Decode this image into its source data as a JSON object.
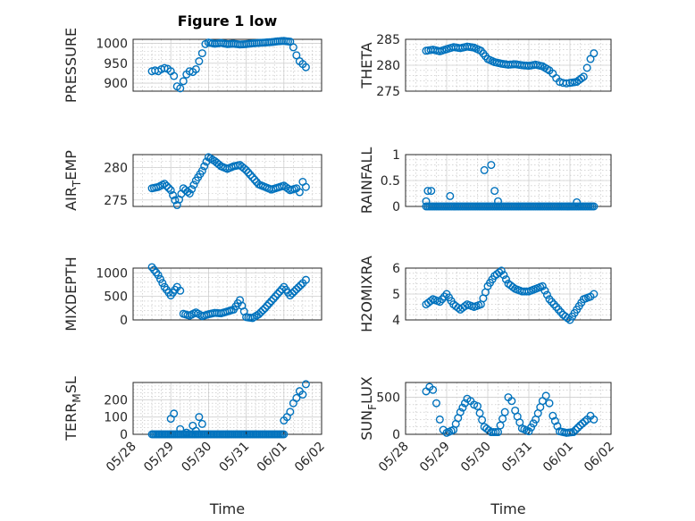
{
  "chart_data": [
    {
      "type": "scatter",
      "title": "Figure 1 low",
      "ylabel": "PRESSURE",
      "xlabel": "",
      "ylim": [
        880,
        1010
      ],
      "yticks": [
        "900",
        "950",
        "1000"
      ],
      "ytick_values": [
        900,
        950,
        1000
      ],
      "xticks": [],
      "marker_color": "#0072BD",
      "grid": "on",
      "x": [
        "05/28 12:00",
        "05/28 14:00",
        "05/28 16:00",
        "05/28 18:00",
        "05/28 20:00",
        "05/28 22:00",
        "05/29 00:00",
        "05/29 02:00",
        "05/29 04:00",
        "05/29 06:00",
        "05/29 08:00",
        "05/29 10:00",
        "05/29 12:00",
        "05/29 14:00",
        "05/29 16:00",
        "05/29 18:00",
        "05/29 20:00",
        "05/29 22:00",
        "05/30 00:00",
        "05/30 04:00",
        "05/30 08:00",
        "05/30 12:00",
        "05/30 16:00",
        "05/30 20:00",
        "05/31 00:00",
        "05/31 04:00",
        "05/31 08:00",
        "05/31 12:00",
        "05/31 16:00",
        "05/31 20:00",
        "06/01 00:00",
        "06/01 04:00",
        "06/01 06:00",
        "06/01 08:00",
        "06/01 10:00",
        "06/01 12:00",
        "06/01 14:00"
      ],
      "y": [
        930,
        932,
        930,
        935,
        938,
        936,
        930,
        918,
        892,
        887,
        905,
        922,
        930,
        928,
        935,
        955,
        975,
        998,
        1002,
        999,
        1001,
        998,
        999,
        997,
        998,
        1000,
        1001,
        1002,
        1003,
        1005,
        1006,
        1004,
        990,
        970,
        955,
        948,
        940
      ]
    },
    {
      "type": "scatter",
      "title": "",
      "ylabel": "THETA",
      "xlabel": "",
      "ylim": [
        275,
        285
      ],
      "yticks": [
        "275",
        "280",
        "285"
      ],
      "ytick_values": [
        275,
        280,
        285
      ],
      "xticks": [],
      "marker_color": "#0072BD",
      "grid": "on",
      "x": [
        "05/28 12:00",
        "05/28 16:00",
        "05/28 20:00",
        "05/29 00:00",
        "05/29 04:00",
        "05/29 08:00",
        "05/29 12:00",
        "05/29 16:00",
        "05/29 20:00",
        "05/30 00:00",
        "05/30 04:00",
        "05/30 08:00",
        "05/30 12:00",
        "05/30 16:00",
        "05/30 20:00",
        "05/31 00:00",
        "05/31 04:00",
        "05/31 08:00",
        "05/31 12:00",
        "05/31 14:00",
        "05/31 16:00",
        "05/31 18:00",
        "05/31 20:00",
        "05/31 22:00",
        "06/01 00:00",
        "06/01 04:00",
        "06/01 08:00",
        "06/01 10:00",
        "06/01 12:00",
        "06/01 14:00"
      ],
      "y": [
        282.8,
        283.0,
        282.7,
        283.1,
        283.5,
        283.3,
        283.6,
        283.4,
        282.8,
        281.2,
        280.6,
        280.3,
        280.1,
        280.2,
        280.0,
        279.9,
        280.1,
        279.8,
        279.0,
        278.4,
        277.5,
        276.8,
        276.6,
        276.5,
        276.6,
        276.8,
        277.8,
        279.5,
        281.2,
        282.3
      ]
    },
    {
      "type": "scatter",
      "title": "",
      "ylabel": "AIR_TEMP",
      "xlabel": "",
      "ylim": [
        274,
        282
      ],
      "yticks": [
        "275",
        "280"
      ],
      "ytick_values": [
        275,
        280
      ],
      "xticks": [],
      "marker_color": "#0072BD",
      "grid": "on",
      "x": [
        "05/28 12:00",
        "05/28 16:00",
        "05/28 20:00",
        "05/29 00:00",
        "05/29 04:00",
        "05/29 08:00",
        "05/29 12:00",
        "05/29 16:00",
        "05/29 20:00",
        "05/30 00:00",
        "05/30 04:00",
        "05/30 08:00",
        "05/30 12:00",
        "05/30 16:00",
        "05/30 20:00",
        "05/31 00:00",
        "05/31 04:00",
        "05/31 08:00",
        "05/31 12:00",
        "05/31 16:00",
        "05/31 20:00",
        "06/01 00:00",
        "06/01 04:00",
        "06/01 08:00",
        "06/01 10:00",
        "06/01 12:00",
        "06/01 14:00"
      ],
      "y": [
        276.8,
        277.0,
        277.5,
        276.5,
        274.2,
        276.8,
        276.0,
        278.0,
        279.5,
        281.6,
        281.0,
        280.2,
        279.8,
        280.2,
        280.4,
        279.6,
        278.5,
        277.4,
        277.0,
        276.6,
        276.9,
        277.2,
        276.5,
        276.8,
        276.2,
        277.8,
        277.0
      ]
    },
    {
      "type": "scatter",
      "title": "",
      "ylabel": "RAINFALL",
      "xlabel": "",
      "ylim": [
        0,
        1
      ],
      "yticks": [
        "0",
        "0.5",
        "1"
      ],
      "ytick_values": [
        0,
        0.5,
        1
      ],
      "xticks": [],
      "marker_color": "#0072BD",
      "grid": "on",
      "x": [
        "05/28 12:00",
        "05/28 13:00",
        "05/28 15:00",
        "05/29 02:00",
        "05/29 22:00",
        "05/30 02:00",
        "05/30 04:00",
        "05/30 06:00",
        "06/01 04:00"
      ],
      "y": [
        0.1,
        0.3,
        0.3,
        0.2,
        0.7,
        0.8,
        0.3,
        0.1,
        0.08
      ],
      "baseline": {
        "value": 0,
        "from": "05/28 12:00",
        "to": "06/01 14:00"
      }
    },
    {
      "type": "scatter",
      "title": "",
      "ylabel": "MIXDEPTH",
      "xlabel": "",
      "ylim": [
        0,
        1100
      ],
      "yticks": [
        "0",
        "500",
        "1000"
      ],
      "ytick_values": [
        0,
        500,
        1000
      ],
      "xticks": [],
      "marker_color": "#0072BD",
      "grid": "on",
      "x": [
        "05/28 12:00",
        "05/28 16:00",
        "05/28 20:00",
        "05/29 00:00",
        "05/29 04:00",
        "05/29 06:00",
        "05/29 08:00",
        "05/29 12:00",
        "05/29 16:00",
        "05/29 20:00",
        "05/30 00:00",
        "05/30 04:00",
        "05/30 08:00",
        "05/30 12:00",
        "05/30 16:00",
        "05/30 20:00",
        "05/31 00:00",
        "05/31 04:00",
        "05/31 08:00",
        "05/31 12:00",
        "05/31 16:00",
        "05/31 20:00",
        "06/01 00:00",
        "06/01 04:00",
        "06/01 08:00",
        "06/01 12:00",
        "06/01 14:00"
      ],
      "y": [
        1120,
        950,
        700,
        520,
        700,
        620,
        130,
        90,
        160,
        80,
        120,
        150,
        140,
        180,
        220,
        420,
        60,
        40,
        120,
        250,
        400,
        550,
        700,
        520,
        650,
        780,
        850
      ]
    },
    {
      "type": "scatter",
      "title": "",
      "ylabel": "H2OMIXRA",
      "xlabel": "",
      "ylim": [
        4,
        6
      ],
      "yticks": [
        "4",
        "5",
        "6"
      ],
      "ytick_values": [
        4,
        5,
        6
      ],
      "xticks": [],
      "marker_color": "#0072BD",
      "grid": "on",
      "x": [
        "05/28 12:00",
        "05/28 16:00",
        "05/28 20:00",
        "05/29 00:00",
        "05/29 04:00",
        "05/29 08:00",
        "05/29 12:00",
        "05/29 16:00",
        "05/29 20:00",
        "05/30 00:00",
        "05/30 04:00",
        "05/30 08:00",
        "05/30 12:00",
        "05/30 16:00",
        "05/30 20:00",
        "05/31 00:00",
        "05/31 04:00",
        "05/31 08:00",
        "05/31 12:00",
        "05/31 16:00",
        "05/31 20:00",
        "06/01 00:00",
        "06/01 04:00",
        "06/01 08:00",
        "06/01 12:00",
        "06/01 14:00"
      ],
      "y": [
        4.6,
        4.8,
        4.7,
        5.0,
        4.6,
        4.4,
        4.6,
        4.5,
        4.6,
        5.3,
        5.7,
        5.9,
        5.4,
        5.2,
        5.1,
        5.1,
        5.2,
        5.3,
        4.8,
        4.5,
        4.2,
        4.0,
        4.4,
        4.8,
        4.9,
        5.0
      ]
    },
    {
      "type": "scatter",
      "title": "",
      "ylabel": "TERR_MSL",
      "xlabel": "Time",
      "ylim": [
        0,
        300
      ],
      "yticks": [
        "0",
        "100",
        "200"
      ],
      "ytick_values": [
        0,
        100,
        200
      ],
      "xticks": [
        "05/28",
        "05/29",
        "05/30",
        "05/31",
        "06/01",
        "06/02"
      ],
      "xlim": [
        "05/28",
        "06/02"
      ],
      "marker_color": "#0072BD",
      "grid": "on",
      "x": [
        "05/29 00:00",
        "05/29 02:00",
        "05/29 06:00",
        "05/29 10:00",
        "05/29 14:00",
        "05/29 16:00",
        "05/29 18:00",
        "05/29 20:00",
        "06/01 00:00",
        "06/01 02:00",
        "06/01 04:00",
        "06/01 06:00",
        "06/01 08:00",
        "06/01 10:00",
        "06/01 12:00",
        "06/01 14:00"
      ],
      "y": [
        90,
        120,
        30,
        10,
        50,
        20,
        100,
        60,
        80,
        100,
        130,
        180,
        210,
        250,
        230,
        290
      ],
      "baseline": {
        "value": 0,
        "from": "05/28 12:00",
        "to": "06/01 00:00"
      }
    },
    {
      "type": "scatter",
      "title": "",
      "ylabel": "SUN_FLUX",
      "xlabel": "Time",
      "ylim": [
        0,
        700
      ],
      "yticks": [
        "0",
        "500"
      ],
      "ytick_values": [
        0,
        500
      ],
      "xticks": [
        "05/28",
        "05/29",
        "05/30",
        "05/31",
        "06/01",
        "06/02"
      ],
      "xlim": [
        "05/28",
        "06/02"
      ],
      "marker_color": "#0072BD",
      "grid": "on",
      "x": [
        "05/28 12:00",
        "05/28 14:00",
        "05/28 16:00",
        "05/28 18:00",
        "05/28 20:00",
        "05/28 22:00",
        "05/29 00:00",
        "05/29 04:00",
        "05/29 08:00",
        "05/29 12:00",
        "05/29 14:00",
        "05/29 16:00",
        "05/29 18:00",
        "05/29 22:00",
        "05/30 02:00",
        "05/30 06:00",
        "05/30 10:00",
        "05/30 12:00",
        "05/30 14:00",
        "05/30 16:00",
        "05/30 20:00",
        "05/31 00:00",
        "05/31 04:00",
        "05/31 08:00",
        "05/31 10:00",
        "05/31 12:00",
        "05/31 14:00",
        "05/31 18:00",
        "05/31 22:00",
        "06/01 02:00",
        "06/01 06:00",
        "06/01 10:00",
        "06/01 12:00",
        "06/01 14:00"
      ],
      "y": [
        580,
        640,
        600,
        420,
        200,
        60,
        20,
        60,
        300,
        480,
        450,
        400,
        380,
        100,
        30,
        30,
        300,
        500,
        450,
        320,
        80,
        40,
        200,
        450,
        520,
        420,
        250,
        40,
        20,
        30,
        120,
        200,
        250,
        200
      ]
    }
  ]
}
